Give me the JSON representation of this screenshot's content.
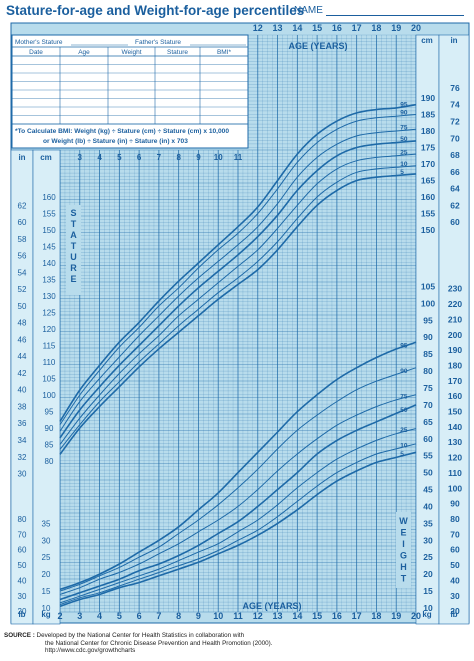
{
  "header": {
    "title": "Stature-for-age and Weight-for-age percentiles",
    "name_label": "NAME"
  },
  "record_table": {
    "mother_label": "Mother's Stature",
    "father_label": "Father's Stature",
    "columns": [
      "Date",
      "Age",
      "Weight",
      "Stature",
      "BMI*"
    ],
    "bmi_note": [
      "*To Calculate BMI: Weight (kg) ÷ Stature (cm) ÷ Stature (cm) x 10,000",
      "or Weight (lb) ÷ Stature (in) ÷ Stature (in) x 703"
    ]
  },
  "source": {
    "label": "SOURCE :",
    "lines": [
      "Developed by the National Center for Health Statistics in collaboration with",
      "the National Center for Chronic Disease Prevention and Health Promotion (2000).",
      "http://www.cdc.gov/growthcharts"
    ]
  },
  "chart_data": {
    "type": "line",
    "xlabel": "AGE (YEARS)",
    "x_ticks": [
      2,
      3,
      4,
      5,
      6,
      7,
      8,
      9,
      10,
      11,
      12,
      13,
      14,
      15,
      16,
      17,
      18,
      19,
      20
    ],
    "stature_label": "STATURE",
    "weight_label": "WEIGHT",
    "units": {
      "cm": "cm",
      "in": "in",
      "kg": "kg",
      "lb": "lb"
    },
    "stature_cm_ticks": [
      80,
      85,
      90,
      95,
      100,
      105,
      110,
      115,
      120,
      125,
      130,
      135,
      140,
      145,
      150,
      155,
      160,
      165,
      170,
      175,
      180,
      185,
      190
    ],
    "stature_in_ticks": [
      30,
      32,
      34,
      36,
      38,
      40,
      42,
      44,
      46,
      48,
      50,
      52,
      54,
      56,
      58,
      60,
      62,
      64,
      66,
      68,
      70,
      72,
      74,
      76
    ],
    "weight_kg_ticks": [
      10,
      15,
      20,
      25,
      30,
      35,
      40,
      45,
      50,
      55,
      60,
      65,
      70,
      75,
      80,
      85,
      90,
      95,
      100,
      105
    ],
    "weight_lb_ticks": [
      20,
      30,
      40,
      50,
      60,
      70,
      80,
      90,
      100,
      110,
      120,
      130,
      140,
      150,
      160,
      170,
      180,
      190,
      200,
      210,
      220,
      230
    ],
    "stature_percentiles": [
      {
        "name": "95",
        "values": [
          [
            2,
            92
          ],
          [
            3,
            101.5
          ],
          [
            4,
            109
          ],
          [
            5,
            116
          ],
          [
            6,
            122
          ],
          [
            7,
            128.5
          ],
          [
            8,
            134.5
          ],
          [
            9,
            140
          ],
          [
            10,
            145.5
          ],
          [
            11,
            151
          ],
          [
            12,
            157
          ],
          [
            13,
            165
          ],
          [
            14,
            173
          ],
          [
            15,
            179
          ],
          [
            16,
            183
          ],
          [
            17,
            185.5
          ],
          [
            18,
            186.5
          ],
          [
            19,
            187
          ],
          [
            20,
            188
          ]
        ]
      },
      {
        "name": "90",
        "values": [
          [
            2,
            91
          ],
          [
            3,
            100
          ],
          [
            4,
            107.5
          ],
          [
            5,
            114.5
          ],
          [
            6,
            120.5
          ],
          [
            7,
            127
          ],
          [
            8,
            132.5
          ],
          [
            9,
            138.5
          ],
          [
            10,
            144
          ],
          [
            11,
            149
          ],
          [
            12,
            155
          ],
          [
            13,
            162.5
          ],
          [
            14,
            170.5
          ],
          [
            15,
            176.5
          ],
          [
            16,
            180.5
          ],
          [
            17,
            183
          ],
          [
            18,
            184
          ],
          [
            19,
            184.5
          ],
          [
            20,
            185
          ]
        ]
      },
      {
        "name": "75",
        "values": [
          [
            2,
            89
          ],
          [
            3,
            98
          ],
          [
            4,
            105
          ],
          [
            5,
            111.5
          ],
          [
            6,
            118
          ],
          [
            7,
            124
          ],
          [
            8,
            130
          ],
          [
            9,
            135.5
          ],
          [
            10,
            140.5
          ],
          [
            11,
            145.5
          ],
          [
            12,
            151
          ],
          [
            13,
            158
          ],
          [
            14,
            166
          ],
          [
            15,
            172
          ],
          [
            16,
            176
          ],
          [
            17,
            178.5
          ],
          [
            18,
            179.5
          ],
          [
            19,
            180
          ],
          [
            20,
            180.5
          ]
        ]
      },
      {
        "name": "50",
        "values": [
          [
            2,
            87
          ],
          [
            3,
            95.5
          ],
          [
            4,
            102.5
          ],
          [
            5,
            109
          ],
          [
            6,
            115
          ],
          [
            7,
            121
          ],
          [
            8,
            127
          ],
          [
            9,
            132.5
          ],
          [
            10,
            137.5
          ],
          [
            11,
            142.5
          ],
          [
            12,
            148
          ],
          [
            13,
            154.5
          ],
          [
            14,
            162
          ],
          [
            15,
            168
          ],
          [
            16,
            172.5
          ],
          [
            17,
            175
          ],
          [
            18,
            176
          ],
          [
            19,
            176.5
          ],
          [
            20,
            177
          ]
        ]
      },
      {
        "name": "25",
        "values": [
          [
            2,
            85
          ],
          [
            3,
            93
          ],
          [
            4,
            100
          ],
          [
            5,
            106.5
          ],
          [
            6,
            112.5
          ],
          [
            7,
            118
          ],
          [
            8,
            124
          ],
          [
            9,
            129
          ],
          [
            10,
            134
          ],
          [
            11,
            139
          ],
          [
            12,
            144
          ],
          [
            13,
            150.5
          ],
          [
            14,
            157.5
          ],
          [
            15,
            164
          ],
          [
            16,
            168.5
          ],
          [
            17,
            171
          ],
          [
            18,
            172
          ],
          [
            19,
            172.5
          ],
          [
            20,
            173
          ]
        ]
      },
      {
        "name": "10",
        "values": [
          [
            2,
            83.5
          ],
          [
            3,
            91
          ],
          [
            4,
            98
          ],
          [
            5,
            104
          ],
          [
            6,
            110
          ],
          [
            7,
            115.5
          ],
          [
            8,
            121
          ],
          [
            9,
            126
          ],
          [
            10,
            131
          ],
          [
            11,
            135.5
          ],
          [
            12,
            140.5
          ],
          [
            13,
            146.5
          ],
          [
            14,
            153.5
          ],
          [
            15,
            160
          ],
          [
            16,
            164.5
          ],
          [
            17,
            167.5
          ],
          [
            18,
            168.5
          ],
          [
            19,
            169
          ],
          [
            20,
            169.5
          ]
        ]
      },
      {
        "name": "5",
        "values": [
          [
            2,
            82
          ],
          [
            3,
            90
          ],
          [
            4,
            96.5
          ],
          [
            5,
            102.5
          ],
          [
            6,
            108.5
          ],
          [
            7,
            114
          ],
          [
            8,
            119
          ],
          [
            9,
            124
          ],
          [
            10,
            129
          ],
          [
            11,
            133.5
          ],
          [
            12,
            138
          ],
          [
            13,
            144
          ],
          [
            14,
            151
          ],
          [
            15,
            157.5
          ],
          [
            16,
            162
          ],
          [
            17,
            165
          ],
          [
            18,
            166
          ],
          [
            19,
            166.5
          ],
          [
            20,
            167
          ]
        ]
      }
    ],
    "weight_percentiles": [
      {
        "name": "95",
        "values": [
          [
            2,
            15.5
          ],
          [
            3,
            17.5
          ],
          [
            4,
            20
          ],
          [
            5,
            23
          ],
          [
            6,
            26.5
          ],
          [
            7,
            30
          ],
          [
            8,
            34
          ],
          [
            9,
            39
          ],
          [
            10,
            44
          ],
          [
            11,
            50
          ],
          [
            12,
            56
          ],
          [
            13,
            62
          ],
          [
            14,
            68
          ],
          [
            15,
            73
          ],
          [
            16,
            77.5
          ],
          [
            17,
            81
          ],
          [
            18,
            84
          ],
          [
            19,
            86.5
          ],
          [
            20,
            88.5
          ]
        ]
      },
      {
        "name": "90",
        "values": [
          [
            2,
            15
          ],
          [
            3,
            17
          ],
          [
            4,
            19.5
          ],
          [
            5,
            22
          ],
          [
            6,
            25
          ],
          [
            7,
            28
          ],
          [
            8,
            32
          ],
          [
            9,
            36
          ],
          [
            10,
            40.5
          ],
          [
            11,
            45.5
          ],
          [
            12,
            51
          ],
          [
            13,
            57
          ],
          [
            14,
            62.5
          ],
          [
            15,
            67
          ],
          [
            16,
            71
          ],
          [
            17,
            74.5
          ],
          [
            18,
            77
          ],
          [
            19,
            79
          ],
          [
            20,
            81
          ]
        ]
      },
      {
        "name": "75",
        "values": [
          [
            2,
            14
          ],
          [
            3,
            16
          ],
          [
            4,
            18.5
          ],
          [
            5,
            20.5
          ],
          [
            6,
            23
          ],
          [
            7,
            26
          ],
          [
            8,
            29
          ],
          [
            9,
            32.5
          ],
          [
            10,
            36
          ],
          [
            11,
            40
          ],
          [
            12,
            45
          ],
          [
            13,
            50.5
          ],
          [
            14,
            55.5
          ],
          [
            15,
            60
          ],
          [
            16,
            64
          ],
          [
            17,
            67
          ],
          [
            18,
            69.5
          ],
          [
            19,
            71.5
          ],
          [
            20,
            73
          ]
        ]
      },
      {
        "name": "50",
        "values": [
          [
            2,
            12.5
          ],
          [
            3,
            14.5
          ],
          [
            4,
            16.5
          ],
          [
            5,
            18.5
          ],
          [
            6,
            21
          ],
          [
            7,
            23
          ],
          [
            8,
            25.5
          ],
          [
            9,
            28.5
          ],
          [
            10,
            32
          ],
          [
            11,
            35.5
          ],
          [
            12,
            40
          ],
          [
            13,
            45
          ],
          [
            14,
            50
          ],
          [
            15,
            55.5
          ],
          [
            16,
            59.5
          ],
          [
            17,
            62.5
          ],
          [
            18,
            65
          ],
          [
            19,
            67.5
          ],
          [
            20,
            70
          ]
        ]
      },
      {
        "name": "25",
        "values": [
          [
            2,
            11.5
          ],
          [
            3,
            13.5
          ],
          [
            4,
            15.5
          ],
          [
            5,
            17.5
          ],
          [
            6,
            19.5
          ],
          [
            7,
            21.5
          ],
          [
            8,
            24
          ],
          [
            9,
            26.5
          ],
          [
            10,
            29
          ],
          [
            11,
            32.5
          ],
          [
            12,
            36
          ],
          [
            13,
            40.5
          ],
          [
            14,
            45.5
          ],
          [
            15,
            50
          ],
          [
            16,
            54
          ],
          [
            17,
            57
          ],
          [
            18,
            59.5
          ],
          [
            19,
            61.5
          ],
          [
            20,
            63
          ]
        ]
      },
      {
        "name": "10",
        "values": [
          [
            2,
            11
          ],
          [
            3,
            13
          ],
          [
            4,
            14.5
          ],
          [
            5,
            16.5
          ],
          [
            6,
            18.5
          ],
          [
            7,
            20.5
          ],
          [
            8,
            22.5
          ],
          [
            9,
            24.5
          ],
          [
            10,
            27
          ],
          [
            11,
            30
          ],
          [
            12,
            33
          ],
          [
            13,
            37
          ],
          [
            14,
            41.5
          ],
          [
            15,
            46
          ],
          [
            16,
            50
          ],
          [
            17,
            53
          ],
          [
            18,
            55.5
          ],
          [
            19,
            57
          ],
          [
            20,
            58.5
          ]
        ]
      },
      {
        "name": "5",
        "values": [
          [
            2,
            10.5
          ],
          [
            3,
            12.5
          ],
          [
            4,
            14
          ],
          [
            5,
            16
          ],
          [
            6,
            17.5
          ],
          [
            7,
            19.5
          ],
          [
            8,
            21.5
          ],
          [
            9,
            23.5
          ],
          [
            10,
            26
          ],
          [
            11,
            28.5
          ],
          [
            12,
            31.5
          ],
          [
            13,
            35
          ],
          [
            14,
            39
          ],
          [
            15,
            43.5
          ],
          [
            16,
            47.5
          ],
          [
            17,
            50.5
          ],
          [
            18,
            53
          ],
          [
            19,
            54.5
          ],
          [
            20,
            56
          ]
        ]
      }
    ],
    "colors": {
      "background": "#b8dcec",
      "line": "#1e6aa8",
      "text": "#1b5f9e",
      "box": "#ffffff"
    }
  }
}
